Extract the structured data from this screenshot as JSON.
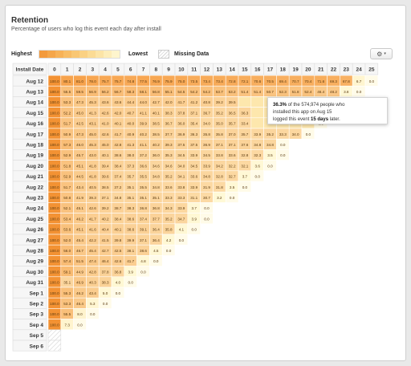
{
  "panel": {
    "title": "Retention",
    "subtitle": "Percentage of users who log this event each day after install"
  },
  "legend": {
    "highest": "Highest",
    "lowest": "Lowest",
    "missing": "Missing Data",
    "swatches": [
      "#f39a3c",
      "#f5a64a",
      "#f7b258",
      "#f8bd66",
      "#f9c774",
      "#fad183",
      "#fbdb94",
      "#fce4a6",
      "#fdedb9",
      "#fef5cd"
    ]
  },
  "toolbar": {
    "settings_icon": "gear-icon",
    "gear_glyph": "⚙",
    "caret_glyph": "▾"
  },
  "tooltip": {
    "pct": "36.3%",
    "line1a": " of the ",
    "count": "574,974",
    "line1b": " people who",
    "line2": "installed this app on Aug 15",
    "line3a": "logged this event ",
    "days": "15 days",
    "line3b": " later."
  },
  "chart_data": {
    "type": "heatmap",
    "title": "Retention",
    "subtitle": "Percentage of users who log this event each day after install",
    "row_header": "Install Date",
    "columns": [
      0,
      1,
      2,
      3,
      4,
      5,
      6,
      7,
      8,
      9,
      10,
      11,
      12,
      13,
      14,
      15,
      16,
      17,
      18,
      19,
      20,
      21,
      22,
      23,
      24,
      25
    ],
    "rows": [
      "Aug 12",
      "Aug 13",
      "Aug 14",
      "Aug 15",
      "Aug 16",
      "Aug 17",
      "Aug 18",
      "Aug 19",
      "Aug 20",
      "Aug 21",
      "Aug 22",
      "Aug 23",
      "Aug 24",
      "Aug 25",
      "Aug 26",
      "Aug 27",
      "Aug 28",
      "Aug 29",
      "Aug 30",
      "Aug 31",
      "Sep 1",
      "Sep 2",
      "Sep 3",
      "Sep 4",
      "Sep 5",
      "Sep 6"
    ],
    "values": [
      [
        "100.0",
        "80.1",
        "81.0",
        "78.0",
        "75.7",
        "75.7",
        "74.8",
        "77.5",
        "76.9",
        "75.9",
        "75.0",
        "73.5",
        "73.4",
        "73.4",
        "72.8",
        "72.1",
        "70.6",
        "70.5",
        "69.4",
        "70.7",
        "70.4",
        "71.6",
        "69.3",
        "67.8",
        "6.7",
        "0.0"
      ],
      [
        "100.0",
        "55.5",
        "59.5",
        "56.9",
        "56.2",
        "56.7",
        "58.3",
        "58.1",
        "56.8",
        "55.1",
        "54.5",
        "54.2",
        "54.2",
        "53.7",
        "53.2",
        "51.4",
        "51.4",
        "50.7",
        "52.3",
        "51.8",
        "52.4",
        "46.4",
        "48.2",
        "3.8",
        "0.0"
      ],
      [
        "100.0",
        "53.3",
        "47.3",
        "45.3",
        "43.6",
        "43.6",
        "44.4",
        "44.0",
        "42.7",
        "42.0",
        "41.7",
        "41.2",
        "40.8",
        "39.2",
        "39.5",
        "",
        "",
        "",
        "",
        "",
        "",
        "",
        "",
        "0.0"
      ],
      [
        "100.0",
        "52.2",
        "45.0",
        "41.3",
        "42.6",
        "42.0",
        "40.7",
        "41.1",
        "40.1",
        "38.3",
        "37.8",
        "37.1",
        "36.7",
        "35.2",
        "36.5",
        "36.3",
        "",
        "",
        "",
        "",
        "",
        "",
        "0.0"
      ],
      [
        "100.0",
        "51.7",
        "42.5",
        "43.1",
        "41.0",
        "40.1",
        "40.0",
        "39.9",
        "38.5",
        "36.7",
        "36.0",
        "35.4",
        "34.0",
        "35.0",
        "35.7",
        "33.4",
        "",
        "",
        "",
        "",
        "",
        "0.0"
      ],
      [
        "100.0",
        "50.9",
        "47.3",
        "45.0",
        "42.6",
        "41.7",
        "40.9",
        "40.2",
        "38.5",
        "37.7",
        "36.9",
        "36.3",
        "35.8",
        "35.8",
        "37.0",
        "35.7",
        "33.9",
        "35.2",
        "33.3",
        "34.0",
        "0.0"
      ],
      [
        "100.0",
        "57.3",
        "46.0",
        "45.3",
        "45.0",
        "42.8",
        "41.3",
        "41.1",
        "40.2",
        "39.3",
        "37.5",
        "37.5",
        "36.9",
        "37.1",
        "37.1",
        "37.6",
        "34.8",
        "34.8",
        "0.0"
      ],
      [
        "100.0",
        "52.9",
        "45.7",
        "43.0",
        "40.1",
        "38.6",
        "38.0",
        "37.2",
        "36.0",
        "35.3",
        "34.5",
        "33.9",
        "34.5",
        "33.8",
        "33.6",
        "32.8",
        "32.3",
        "3.5",
        "0.0"
      ],
      [
        "100.0",
        "51.8",
        "45.1",
        "41.8",
        "39.4",
        "38.4",
        "37.3",
        "36.6",
        "34.6",
        "34.6",
        "34.0",
        "34.5",
        "33.9",
        "34.2",
        "32.2",
        "32.1",
        "3.6",
        "0.0"
      ],
      [
        "100.0",
        "52.9",
        "44.5",
        "41.8",
        "39.6",
        "37.4",
        "35.7",
        "35.5",
        "34.8",
        "35.2",
        "34.1",
        "33.6",
        "34.8",
        "32.8",
        "32.7",
        "3.7",
        "0.0"
      ],
      [
        "100.0",
        "51.7",
        "43.4",
        "40.5",
        "38.5",
        "37.2",
        "35.1",
        "35.5",
        "34.8",
        "33.6",
        "33.8",
        "33.9",
        "31.9",
        "31.8",
        "3.5",
        "0.0"
      ],
      [
        "100.0",
        "50.8",
        "41.9",
        "39.3",
        "37.1",
        "34.8",
        "35.1",
        "35.1",
        "35.1",
        "33.3",
        "33.3",
        "31.1",
        "30.7",
        "3.2",
        "0.0"
      ],
      [
        "100.0",
        "52.1",
        "45.1",
        "42.6",
        "39.2",
        "38.7",
        "38.3",
        "36.8",
        "36.8",
        "34.3",
        "33.9",
        "3.7",
        "0.0"
      ],
      [
        "100.0",
        "53.4",
        "46.2",
        "41.7",
        "40.2",
        "38.4",
        "38.6",
        "37.4",
        "37.7",
        "35.2",
        "34.7",
        "3.9",
        "0.0"
      ],
      [
        "100.0",
        "53.6",
        "45.1",
        "41.6",
        "40.4",
        "40.1",
        "38.6",
        "39.1",
        "36.4",
        "35.8",
        "4.1",
        "0.0"
      ],
      [
        "100.0",
        "52.0",
        "45.4",
        "42.2",
        "41.5",
        "39.8",
        "39.9",
        "37.1",
        "36.4",
        "4.2",
        "0.0"
      ],
      [
        "100.0",
        "56.0",
        "46.7",
        "45.4",
        "42.7",
        "42.5",
        "38.1",
        "38.6",
        "4.5",
        "0.0"
      ],
      [
        "100.0",
        "57.4",
        "51.5",
        "47.4",
        "46.4",
        "42.6",
        "41.7",
        "4.8",
        "0.0"
      ],
      [
        "100.0",
        "59.1",
        "44.9",
        "42.8",
        "37.8",
        "36.8",
        "3.9",
        "0.0"
      ],
      [
        "100.0",
        "35.1",
        "46.9",
        "40.3",
        "38.3",
        "4.0",
        "0.0"
      ],
      [
        "100.0",
        "55.3",
        "46.2",
        "43.4",
        "5.0",
        "0.0"
      ],
      [
        "100.0",
        "53.3",
        "46.4",
        "5.3",
        "0.0"
      ],
      [
        "100.0",
        "55.5",
        "8.0",
        "0.0"
      ],
      [
        "100.0",
        "7.3",
        "0.0"
      ],
      [
        ""
      ],
      [
        ""
      ]
    ]
  }
}
